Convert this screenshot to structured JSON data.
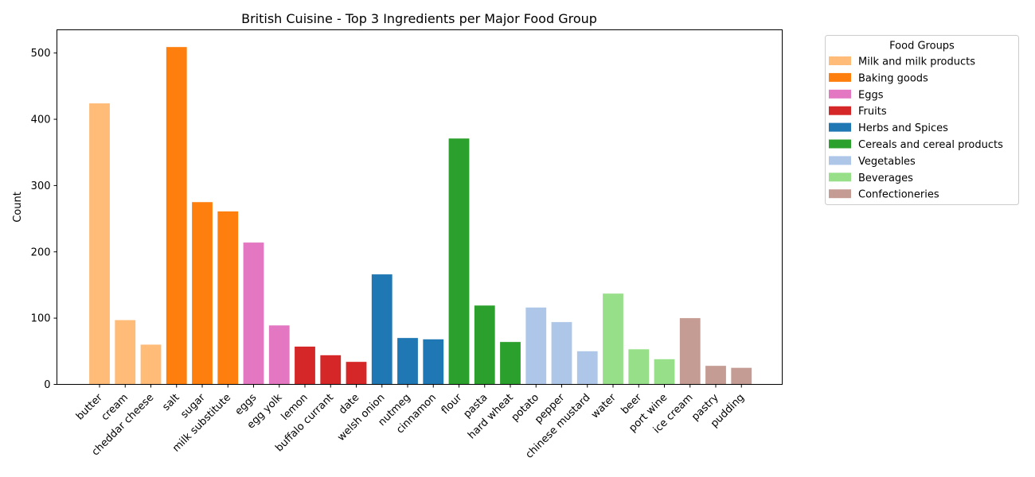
{
  "chart_data": {
    "type": "bar",
    "title": "British Cuisine - Top 3 Ingredients per Major Food Group",
    "xlabel": "",
    "ylabel": "Count",
    "ylim": [
      0,
      535
    ],
    "yticks": [
      0,
      100,
      200,
      300,
      400,
      500
    ],
    "grid": false,
    "legend_title": "Food Groups",
    "legend_position": "outside-right-top",
    "groups": [
      {
        "name": "Milk and milk products",
        "color": "#ffbb78"
      },
      {
        "name": "Baking goods",
        "color": "#ff7f0e"
      },
      {
        "name": "Eggs",
        "color": "#e377c2"
      },
      {
        "name": "Fruits",
        "color": "#d62728"
      },
      {
        "name": "Herbs and Spices",
        "color": "#1f77b4"
      },
      {
        "name": "Cereals and cereal products",
        "color": "#2ca02c"
      },
      {
        "name": "Vegetables",
        "color": "#aec7e8"
      },
      {
        "name": "Beverages",
        "color": "#98df8a"
      },
      {
        "name": "Confectioneries",
        "color": "#c49c94"
      }
    ],
    "bars": [
      {
        "label": "butter",
        "value": 424,
        "group": 0
      },
      {
        "label": "cream",
        "value": 97,
        "group": 0
      },
      {
        "label": "cheddar cheese",
        "value": 60,
        "group": 0
      },
      {
        "label": "salt",
        "value": 509,
        "group": 1
      },
      {
        "label": "sugar",
        "value": 275,
        "group": 1
      },
      {
        "label": "milk substitute",
        "value": 261,
        "group": 1
      },
      {
        "label": "eggs",
        "value": 214,
        "group": 2
      },
      {
        "label": "egg yolk",
        "value": 89,
        "group": 2
      },
      {
        "label": "lemon",
        "value": 57,
        "group": 3
      },
      {
        "label": "buffalo currant",
        "value": 44,
        "group": 3
      },
      {
        "label": "date",
        "value": 34,
        "group": 3
      },
      {
        "label": "welsh onion",
        "value": 166,
        "group": 4
      },
      {
        "label": "nutmeg",
        "value": 70,
        "group": 4
      },
      {
        "label": "cinnamon",
        "value": 68,
        "group": 4
      },
      {
        "label": "flour",
        "value": 371,
        "group": 5
      },
      {
        "label": "pasta",
        "value": 119,
        "group": 5
      },
      {
        "label": "hard wheat",
        "value": 64,
        "group": 5
      },
      {
        "label": "potato",
        "value": 116,
        "group": 6
      },
      {
        "label": "pepper",
        "value": 94,
        "group": 6
      },
      {
        "label": "chinese mustard",
        "value": 50,
        "group": 6
      },
      {
        "label": "water",
        "value": 137,
        "group": 7
      },
      {
        "label": "beer",
        "value": 53,
        "group": 7
      },
      {
        "label": "port wine",
        "value": 38,
        "group": 7
      },
      {
        "label": "ice cream",
        "value": 100,
        "group": 8
      },
      {
        "label": "pastry",
        "value": 28,
        "group": 8
      },
      {
        "label": "pudding",
        "value": 25,
        "group": 8
      }
    ]
  }
}
